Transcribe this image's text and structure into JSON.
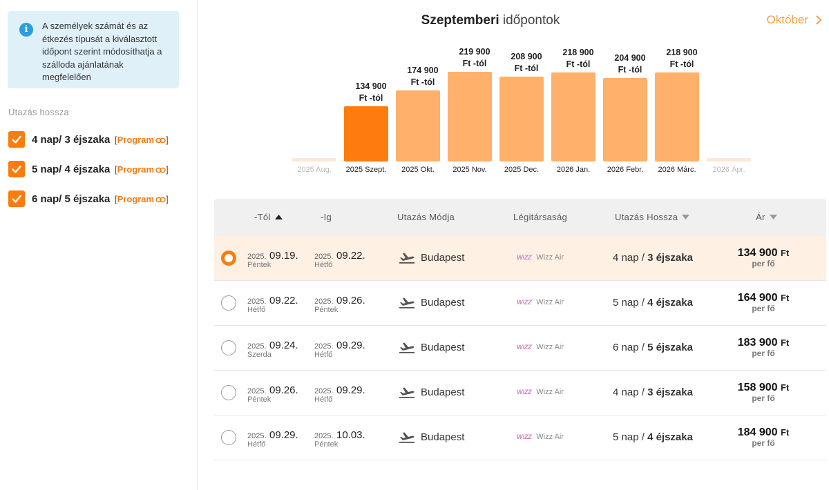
{
  "info": {
    "text": "A személyek számát és az étkezés típusát a kiválasztott időpont szerint módosíthatja a szálloda ajánlatának megfelelően"
  },
  "sidebar": {
    "section_label": "Utazás hossza",
    "durations": [
      {
        "label": "4 nap/ 3 éjszaka",
        "program": "Program",
        "checked": true
      },
      {
        "label": "5 nap/ 4 éjszaka",
        "program": "Program",
        "checked": true
      },
      {
        "label": "6 nap/ 5 éjszaka",
        "program": "Program",
        "checked": true
      }
    ]
  },
  "chart_header": {
    "title_bold": "Szeptemberi",
    "title_light": "időpontok",
    "next_label": "Október"
  },
  "chart_data": {
    "type": "bar",
    "categories": [
      "2025 Aug.",
      "2025 Szept.",
      "2025 Okt.",
      "2025 Nov.",
      "2025 Dec.",
      "2026 Jan.",
      "2026 Febr.",
      "2026 Márc.",
      "2026 Ápr."
    ],
    "values": [
      null,
      134900,
      174900,
      219900,
      208900,
      218900,
      204900,
      218900,
      null
    ],
    "data_labels": [
      "",
      "134 900",
      "174 900",
      "219 900",
      "208 900",
      "218 900",
      "204 900",
      "218 900",
      ""
    ],
    "unit_label": "Ft -tól",
    "selected": "2025 Szept.",
    "unavailable": [
      "2025 Aug.",
      "2026 Ápr."
    ],
    "colors": {
      "selected": "#fd7c0d",
      "default": "#ffb06a",
      "unavailable": "#fde8d8"
    }
  },
  "table": {
    "headers": {
      "from": "-Tól",
      "to": "-Ig",
      "mode": "Utazás Módja",
      "airline": "Légitársaság",
      "length": "Utazás Hossza",
      "price": "Ár"
    },
    "rows": [
      {
        "selected": true,
        "from_year": "2025.",
        "from_date": "09.19.",
        "from_day": "Péntek",
        "to_year": "2025.",
        "to_date": "09.22.",
        "to_day": "Hétfő",
        "mode": "Budapest",
        "airline_logo": "wizz",
        "airline": "Wizz Air",
        "days": "4 nap",
        "nights": "3 éjszaka",
        "price": "134 900",
        "currency": "Ft",
        "per": "per fő"
      },
      {
        "selected": false,
        "from_year": "2025.",
        "from_date": "09.22.",
        "from_day": "Hétfő",
        "to_year": "2025.",
        "to_date": "09.26.",
        "to_day": "Péntek",
        "mode": "Budapest",
        "airline_logo": "wizz",
        "airline": "Wizz Air",
        "days": "5 nap",
        "nights": "4 éjszaka",
        "price": "164 900",
        "currency": "Ft",
        "per": "per fő"
      },
      {
        "selected": false,
        "from_year": "2025.",
        "from_date": "09.24.",
        "from_day": "Szerda",
        "to_year": "2025.",
        "to_date": "09.29.",
        "to_day": "Hétfő",
        "mode": "Budapest",
        "airline_logo": "wizz",
        "airline": "Wizz Air",
        "days": "6 nap",
        "nights": "5 éjszaka",
        "price": "183 900",
        "currency": "Ft",
        "per": "per fő"
      },
      {
        "selected": false,
        "from_year": "2025.",
        "from_date": "09.26.",
        "from_day": "Péntek",
        "to_year": "2025.",
        "to_date": "09.29.",
        "to_day": "Hétfő",
        "mode": "Budapest",
        "airline_logo": "wizz",
        "airline": "Wizz Air",
        "days": "4 nap",
        "nights": "3 éjszaka",
        "price": "158 900",
        "currency": "Ft",
        "per": "per fő"
      },
      {
        "selected": false,
        "from_year": "2025.",
        "from_date": "09.29.",
        "from_day": "Hétfő",
        "to_year": "2025.",
        "to_date": "10.03.",
        "to_day": "Péntek",
        "mode": "Budapest",
        "airline_logo": "wizz",
        "airline": "Wizz Air",
        "days": "5 nap",
        "nights": "4 éjszaka",
        "price": "184 900",
        "currency": "Ft",
        "per": "per fő"
      }
    ]
  },
  "icons": {
    "info": "info-icon",
    "checkbox": "check-icon",
    "program_link": "link-icon",
    "next": "chevron-right-icon",
    "sort_asc": "sort-up-icon",
    "sort_desc": "sort-down-icon",
    "flight": "plane-departure-icon"
  },
  "colors": {
    "accent": "#fd7c0d",
    "accent_light": "#ffb06a",
    "info_bg": "#dff0f9",
    "selected_row": "#fff0e4"
  }
}
